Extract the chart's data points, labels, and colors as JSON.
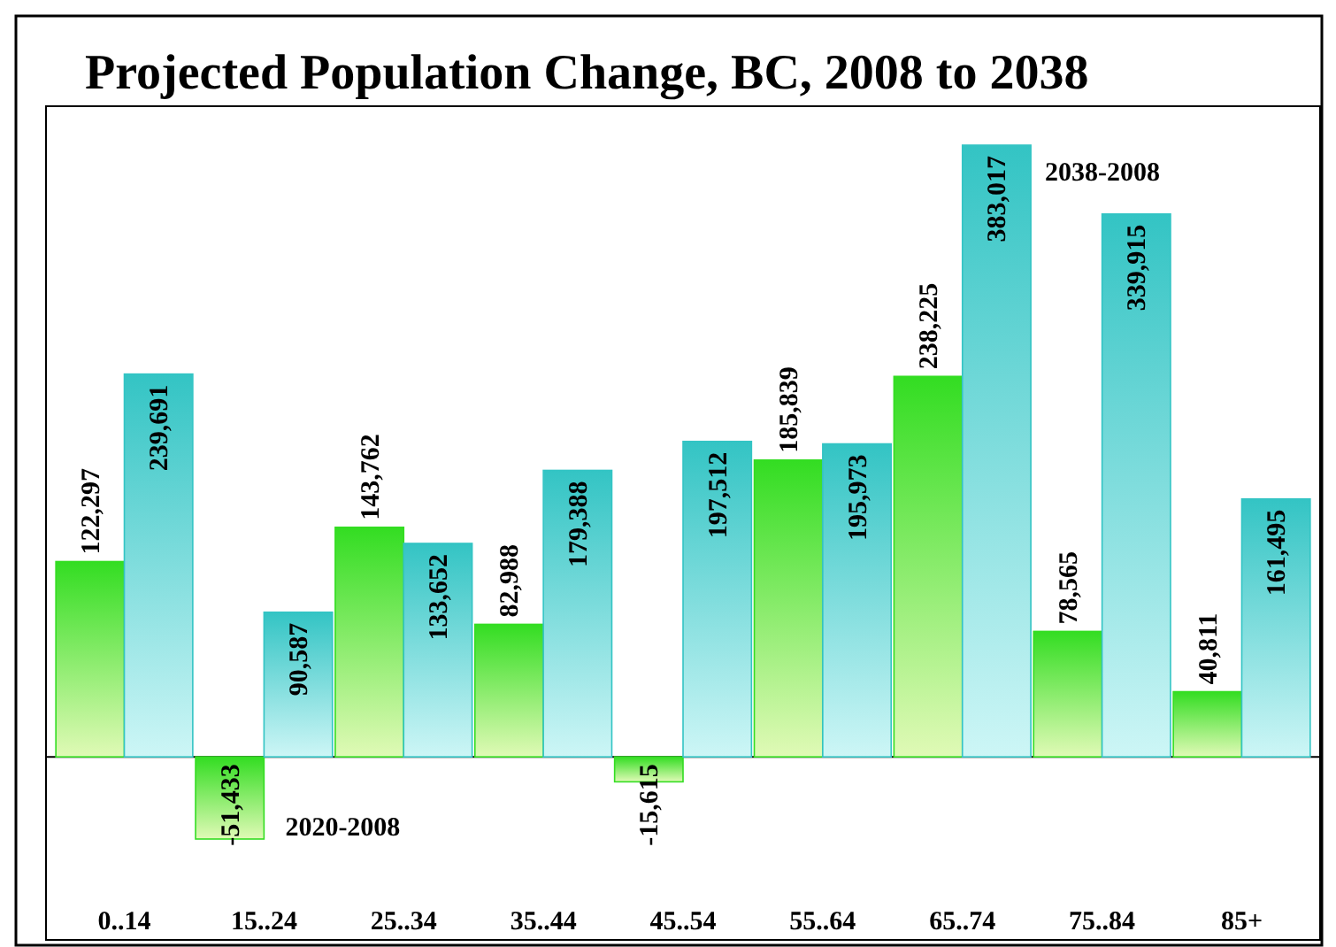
{
  "chart_data": {
    "type": "bar",
    "title": "Projected Population Change, BC, 2008 to 2038",
    "categories": [
      "0..14",
      "15..24",
      "25..34",
      "35..44",
      "45..54",
      "55..64",
      "65..74",
      "75..84",
      "85+"
    ],
    "series": [
      {
        "name": "2020-2008",
        "color": "#33dd22",
        "values": [
          122297,
          -51433,
          143762,
          82988,
          -15615,
          185839,
          238225,
          78565,
          40811
        ],
        "value_labels": [
          "122,297",
          "-51,433",
          "143,762",
          "82,988",
          "-15,615",
          "185,839",
          "238,225",
          "78,565",
          "40,811"
        ]
      },
      {
        "name": "2038-2008",
        "color": "#33c4c4",
        "values": [
          239691,
          90587,
          133652,
          179388,
          197512,
          195973,
          383017,
          339915,
          161495
        ],
        "value_labels": [
          "239,691",
          "90,587",
          "133,652",
          "179,388",
          "197,512",
          "195,973",
          "383,017",
          "339,915",
          "161,495"
        ]
      }
    ],
    "legend": false
  }
}
